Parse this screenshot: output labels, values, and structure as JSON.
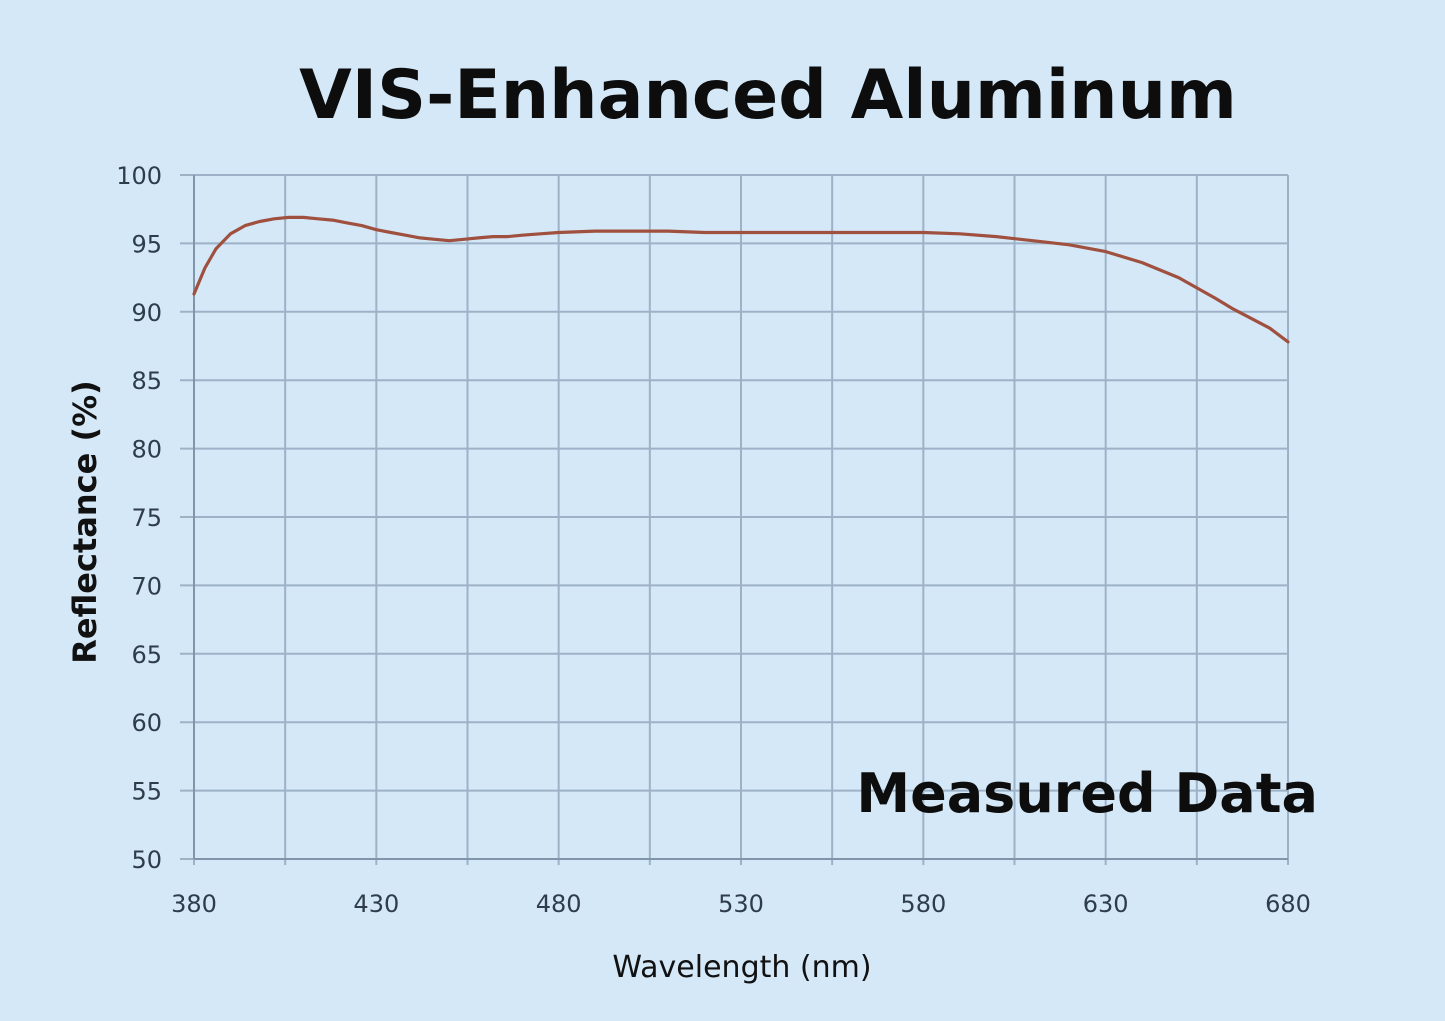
{
  "chart_data": {
    "type": "line",
    "title": "VIS-Enhanced Aluminum",
    "annotation": "Measured Data",
    "xlabel": "Wavelength (nm)",
    "ylabel": "Reflectance (%)",
    "xlim": [
      380,
      680
    ],
    "ylim": [
      50,
      100
    ],
    "x_ticks": [
      "380",
      "430",
      "480",
      "530",
      "580",
      "630",
      "680"
    ],
    "y_ticks": [
      "50",
      "55",
      "60",
      "65",
      "70",
      "75",
      "80",
      "85",
      "90",
      "95",
      "100"
    ],
    "grid": true,
    "line_color": "#a0503e",
    "series": [
      {
        "x": [
          380,
          383,
          386,
          390,
          394,
          398,
          402,
          406,
          410,
          414,
          418,
          422,
          426,
          430,
          434,
          438,
          442,
          446,
          450,
          454,
          458,
          462,
          466,
          470,
          475,
          480,
          490,
          500,
          510,
          520,
          530,
          540,
          550,
          560,
          570,
          580,
          590,
          600,
          610,
          620,
          630,
          640,
          650,
          660,
          665,
          670,
          675,
          680
        ],
        "y": [
          91.3,
          93.2,
          94.6,
          95.7,
          96.3,
          96.6,
          96.8,
          96.9,
          96.9,
          96.8,
          96.7,
          96.5,
          96.3,
          96.0,
          95.8,
          95.6,
          95.4,
          95.3,
          95.2,
          95.3,
          95.4,
          95.5,
          95.5,
          95.6,
          95.7,
          95.8,
          95.9,
          95.9,
          95.9,
          95.8,
          95.8,
          95.8,
          95.8,
          95.8,
          95.8,
          95.8,
          95.7,
          95.5,
          95.2,
          94.9,
          94.4,
          93.6,
          92.5,
          91.0,
          90.2,
          89.5,
          88.8,
          87.8
        ]
      }
    ]
  }
}
